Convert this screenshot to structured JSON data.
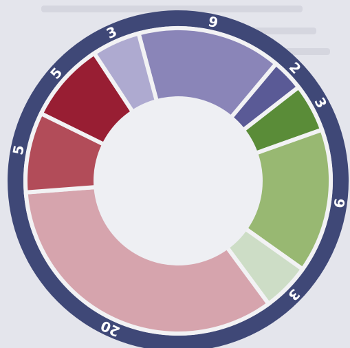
{
  "chart_data": {
    "type": "pie",
    "style": "donut",
    "title": "",
    "start_angle_deg": -15,
    "direction": "clockwise",
    "slices": [
      {
        "value": 9,
        "label": "9",
        "color": "#8a85b8"
      },
      {
        "value": 2,
        "label": "2",
        "color": "#5a5a96"
      },
      {
        "value": 3,
        "label": "3",
        "color": "#5a8c38"
      },
      {
        "value": 9,
        "label": "9",
        "color": "#98b872"
      },
      {
        "value": 3,
        "label": "3",
        "color": "#cdddc6"
      },
      {
        "value": 20,
        "label": "20",
        "color": "#d6a4ad"
      },
      {
        "value": 5,
        "label": "5",
        "color": "#b24c59"
      },
      {
        "value": 5,
        "label": "5",
        "color": "#981e33"
      },
      {
        "value": 3,
        "label": "3",
        "color": "#aeaad0"
      }
    ]
  },
  "colors": {
    "outer_ring": "#3f4877",
    "separator": "#f2f2f4",
    "center_fill": "#eeeff3",
    "background": "#e4e5ec"
  }
}
